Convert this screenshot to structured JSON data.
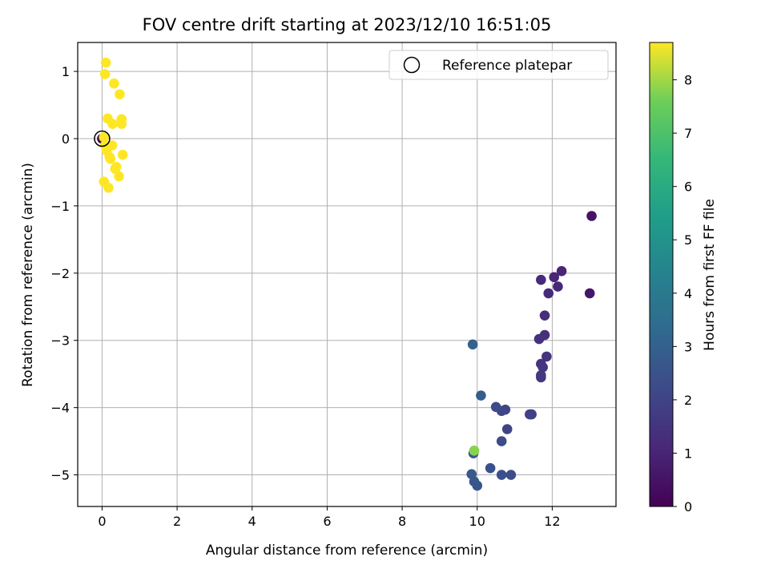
{
  "chart_data": {
    "type": "scatter",
    "title": "FOV centre drift starting at 2023/12/10 16:51:05",
    "xlabel": "Angular distance from reference (arcmin)",
    "ylabel": "Rotation from reference (arcmin)",
    "xlim": [
      -0.65,
      13.7
    ],
    "ylim": [
      -5.47,
      1.43
    ],
    "xticks": [
      0,
      2,
      4,
      6,
      8,
      10,
      12
    ],
    "yticks": [
      -5,
      -4,
      -3,
      -2,
      -1,
      0,
      1
    ],
    "grid": true,
    "colorbar": {
      "label": "Hours from first FF file",
      "range": [
        0,
        8.7
      ],
      "ticks": [
        0,
        1,
        2,
        3,
        4,
        5,
        6,
        7,
        8
      ],
      "colormap": "viridis"
    },
    "legend": {
      "position": "top-right",
      "entries": [
        "Reference platepar"
      ]
    },
    "reference_point": {
      "x": 0.0,
      "y": 0.0,
      "label": "Reference platepar"
    },
    "points": [
      {
        "x": 0.0,
        "y": 0.0,
        "c": 0.1
      },
      {
        "x": 13.05,
        "y": -1.15,
        "c": 0.5
      },
      {
        "x": 13.0,
        "y": -2.3,
        "c": 0.6
      },
      {
        "x": 12.25,
        "y": -1.97,
        "c": 1.0
      },
      {
        "x": 12.05,
        "y": -2.06,
        "c": 1.05
      },
      {
        "x": 12.15,
        "y": -2.2,
        "c": 1.1
      },
      {
        "x": 11.7,
        "y": -2.1,
        "c": 1.15
      },
      {
        "x": 11.9,
        "y": -2.3,
        "c": 1.2
      },
      {
        "x": 11.8,
        "y": -2.63,
        "c": 1.3
      },
      {
        "x": 11.8,
        "y": -2.92,
        "c": 1.35
      },
      {
        "x": 11.65,
        "y": -2.98,
        "c": 1.4
      },
      {
        "x": 11.85,
        "y": -3.24,
        "c": 1.45
      },
      {
        "x": 11.7,
        "y": -3.35,
        "c": 1.5
      },
      {
        "x": 11.75,
        "y": -3.4,
        "c": 1.55
      },
      {
        "x": 11.7,
        "y": -3.55,
        "c": 1.6
      },
      {
        "x": 11.7,
        "y": -3.52,
        "c": 1.65
      },
      {
        "x": 11.45,
        "y": -4.1,
        "c": 1.8
      },
      {
        "x": 11.4,
        "y": -4.1,
        "c": 1.9
      },
      {
        "x": 10.8,
        "y": -4.32,
        "c": 2.0
      },
      {
        "x": 10.75,
        "y": -4.03,
        "c": 2.05
      },
      {
        "x": 10.65,
        "y": -4.05,
        "c": 2.1
      },
      {
        "x": 10.5,
        "y": -3.99,
        "c": 2.2
      },
      {
        "x": 10.65,
        "y": -4.5,
        "c": 2.25
      },
      {
        "x": 10.9,
        "y": -5.0,
        "c": 2.3
      },
      {
        "x": 10.65,
        "y": -5.0,
        "c": 2.4
      },
      {
        "x": 10.35,
        "y": -4.9,
        "c": 2.5
      },
      {
        "x": 10.0,
        "y": -5.16,
        "c": 2.6
      },
      {
        "x": 9.92,
        "y": -5.1,
        "c": 2.7
      },
      {
        "x": 9.85,
        "y": -4.99,
        "c": 2.75
      },
      {
        "x": 9.9,
        "y": -4.68,
        "c": 2.8
      },
      {
        "x": 10.1,
        "y": -3.82,
        "c": 2.9
      },
      {
        "x": 9.88,
        "y": -3.06,
        "c": 3.1
      },
      {
        "x": 9.92,
        "y": -4.64,
        "c": 7.8
      },
      {
        "x": 0.1,
        "y": 1.13,
        "c": 8.7
      },
      {
        "x": 0.08,
        "y": 0.96,
        "c": 8.7
      },
      {
        "x": 0.32,
        "y": 0.82,
        "c": 8.7
      },
      {
        "x": 0.47,
        "y": 0.66,
        "c": 8.7
      },
      {
        "x": 0.15,
        "y": 0.3,
        "c": 8.7
      },
      {
        "x": 0.52,
        "y": 0.29,
        "c": 8.7
      },
      {
        "x": 0.28,
        "y": 0.22,
        "c": 8.7
      },
      {
        "x": 0.52,
        "y": 0.22,
        "c": 8.7
      },
      {
        "x": 0.05,
        "y": 0.02,
        "c": 8.7
      },
      {
        "x": 0.08,
        "y": -0.1,
        "c": 8.7
      },
      {
        "x": 0.27,
        "y": -0.1,
        "c": 8.7
      },
      {
        "x": 0.12,
        "y": -0.18,
        "c": 8.7
      },
      {
        "x": 0.2,
        "y": -0.27,
        "c": 8.7
      },
      {
        "x": 0.22,
        "y": -0.3,
        "c": 8.7
      },
      {
        "x": 0.55,
        "y": -0.24,
        "c": 8.7
      },
      {
        "x": 0.38,
        "y": -0.42,
        "c": 8.7
      },
      {
        "x": 0.35,
        "y": -0.45,
        "c": 8.7
      },
      {
        "x": 0.45,
        "y": -0.56,
        "c": 8.7
      },
      {
        "x": 0.05,
        "y": -0.64,
        "c": 8.7
      },
      {
        "x": 0.17,
        "y": -0.73,
        "c": 8.7
      }
    ]
  }
}
